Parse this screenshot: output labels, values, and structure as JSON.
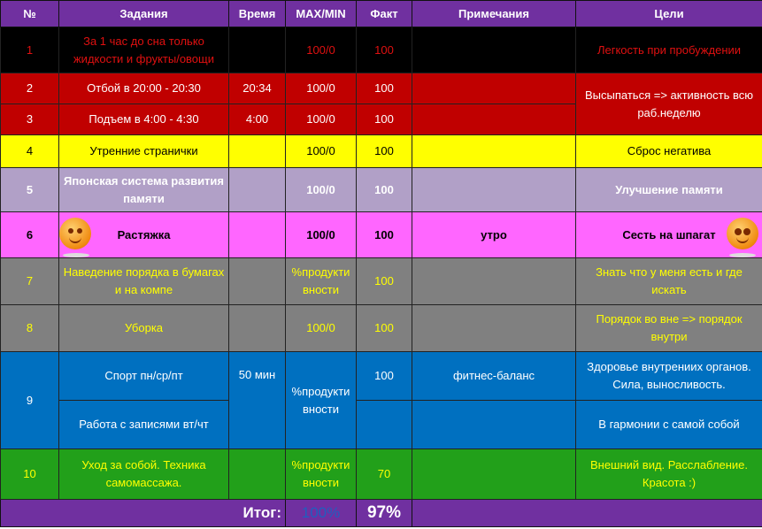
{
  "header": [
    "№",
    "Задания",
    "Время",
    "MAX/MIN",
    "Факт",
    "Примечания",
    "Цели"
  ],
  "rows": [
    {
      "n": "1",
      "task": "За 1 час до сна только жидкости и фрукты/овощи",
      "time": "",
      "maxmin": "100/0",
      "fact": "100",
      "note": "",
      "goal": "Легкость при пробуждении"
    },
    {
      "n": "2",
      "task": "Отбой в 20:00 - 20:30",
      "time": "20:34",
      "maxmin": "100/0",
      "fact": "100",
      "note": "",
      "goal": "Высыпаться => активность всю раб.неделю"
    },
    {
      "n": "3",
      "task": "Подъем в 4:00 - 4:30",
      "time": "4:00",
      "maxmin": "100/0",
      "fact": "100",
      "note": ""
    },
    {
      "n": "4",
      "task": "Утренние странички",
      "time": "",
      "maxmin": "100/0",
      "fact": "100",
      "note": "",
      "goal": "Сброс негатива"
    },
    {
      "n": "5",
      "task": "Японская система развития памяти",
      "time": "",
      "maxmin": "100/0",
      "fact": "100",
      "note": "",
      "goal": "Улучшение памяти"
    },
    {
      "n": "6",
      "task": "Растяжка",
      "time": "",
      "maxmin": "100/0",
      "fact": "100",
      "note": "утро",
      "goal": "Сесть на шпагат"
    },
    {
      "n": "7",
      "task": "Наведение порядка в бумагах и на компе",
      "time": "",
      "maxmin": "%продуктивности",
      "fact": "100",
      "note": "",
      "goal": "Знать что у меня есть и где искать"
    },
    {
      "n": "8",
      "task": "Уборка",
      "time": "",
      "maxmin": "100/0",
      "fact": "100",
      "note": "",
      "goal": "Порядок во вне => порядок внутри"
    },
    {
      "n": "9",
      "task": "Спорт пн/ср/пт",
      "time": "50 мин",
      "maxmin": "%продуктивности",
      "fact": "100",
      "note": "фитнес-баланс",
      "goal": "Здоровье внутрениих органов. Сила, выносливость."
    },
    {
      "task": "Работа с записями вт/чт",
      "goal": "В гармонии с самой собой"
    },
    {
      "n": "10",
      "task": "Уход за собой. Техника самомассажа.",
      "time": "",
      "maxmin": "%продуктивности",
      "fact": "70",
      "note": "",
      "goal": "Внешний вид. Расслабление. Красота :)"
    }
  ],
  "total": {
    "label": "Итог:",
    "max": "100%",
    "fact": "97%"
  },
  "colors": {
    "header": "#7030a0",
    "red": "#c00000",
    "yellow": "#ffff00",
    "lavender": "#b1a0c7",
    "pink": "#ff66ff",
    "gray": "#808080",
    "blue": "#0070c0",
    "green": "#22a01a"
  }
}
